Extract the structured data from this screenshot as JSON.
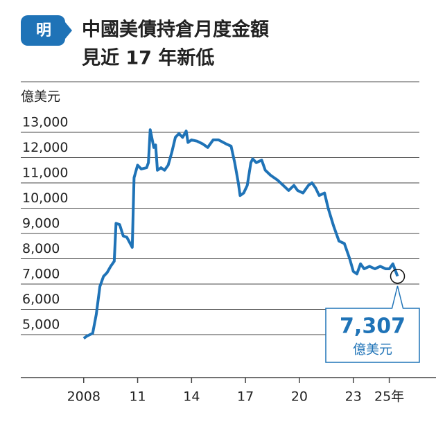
{
  "logo": "明",
  "chart_data": {
    "type": "line",
    "title": "中國美債持倉月度金額",
    "subtitle": "見近 17 年新低",
    "y_label": "億美元",
    "xlim": [
      2004.5,
      2027.6
    ],
    "ylim": [
      3300,
      13500
    ],
    "xticks": [
      {
        "value": 2008,
        "label": "2008"
      },
      {
        "value": 2011,
        "label": "11"
      },
      {
        "value": 2014,
        "label": "14"
      },
      {
        "value": 2017,
        "label": "17"
      },
      {
        "value": 2020,
        "label": "20"
      },
      {
        "value": 2023,
        "label": "23"
      },
      {
        "value": 2025,
        "label": "25年"
      }
    ],
    "yticks": [
      {
        "value": 5000,
        "label": "5,000"
      },
      {
        "value": 6000,
        "label": "6,000"
      },
      {
        "value": 7000,
        "label": "7,000"
      },
      {
        "value": 8000,
        "label": "8,000"
      },
      {
        "value": 9000,
        "label": "9,000"
      },
      {
        "value": 10000,
        "label": "10,000"
      },
      {
        "value": 11000,
        "label": "11,000"
      },
      {
        "value": 12000,
        "label": "12,000"
      },
      {
        "value": 13000,
        "label": "13,000"
      }
    ],
    "grid": true,
    "series": [
      {
        "color": "#1f73b7",
        "x": [
          2008.0,
          2008.2,
          2008.5,
          2008.7,
          2008.9,
          2009.1,
          2009.3,
          2009.5,
          2009.7,
          2009.8,
          2010.0,
          2010.2,
          2010.4,
          2010.7,
          2010.8,
          2011.0,
          2011.2,
          2011.5,
          2011.6,
          2011.7,
          2011.9,
          2012.0,
          2012.1,
          2012.3,
          2012.5,
          2012.7,
          2012.9,
          2013.1,
          2013.3,
          2013.5,
          2013.7,
          2013.8,
          2014.0,
          2014.3,
          2014.6,
          2014.9,
          2015.2,
          2015.5,
          2015.9,
          2016.2,
          2016.4,
          2016.6,
          2016.7,
          2016.9,
          2017.1,
          2017.3,
          2017.4,
          2017.6,
          2017.9,
          2018.1,
          2018.4,
          2018.8,
          2019.1,
          2019.4,
          2019.7,
          2019.9,
          2020.2,
          2020.5,
          2020.7,
          2020.9,
          2021.1,
          2021.4,
          2021.6,
          2021.9,
          2022.2,
          2022.5,
          2022.8,
          2023.0,
          2023.2,
          2023.4,
          2023.6,
          2023.9,
          2024.2,
          2024.5,
          2024.8,
          2025.0,
          2025.2,
          2025.46
        ],
        "values": [
          4850,
          4950,
          5050,
          5800,
          6900,
          7300,
          7450,
          7700,
          7900,
          9400,
          9350,
          8900,
          8850,
          8450,
          11200,
          11700,
          11550,
          11600,
          11800,
          13100,
          12400,
          12500,
          11500,
          11600,
          11500,
          11700,
          12200,
          12800,
          12950,
          12800,
          13050,
          12600,
          12700,
          12650,
          12550,
          12400,
          12700,
          12700,
          12550,
          12450,
          11800,
          11000,
          10500,
          10600,
          10900,
          11800,
          11950,
          11800,
          11900,
          11500,
          11300,
          11100,
          10900,
          10700,
          10900,
          10700,
          10600,
          10900,
          11000,
          10800,
          10500,
          10600,
          10000,
          9300,
          8700,
          8600,
          8000,
          7500,
          7400,
          7800,
          7600,
          7700,
          7600,
          7700,
          7600,
          7600,
          7800,
          7307
        ]
      }
    ],
    "annotation": {
      "value": "7,307",
      "unit": "億美元"
    }
  }
}
